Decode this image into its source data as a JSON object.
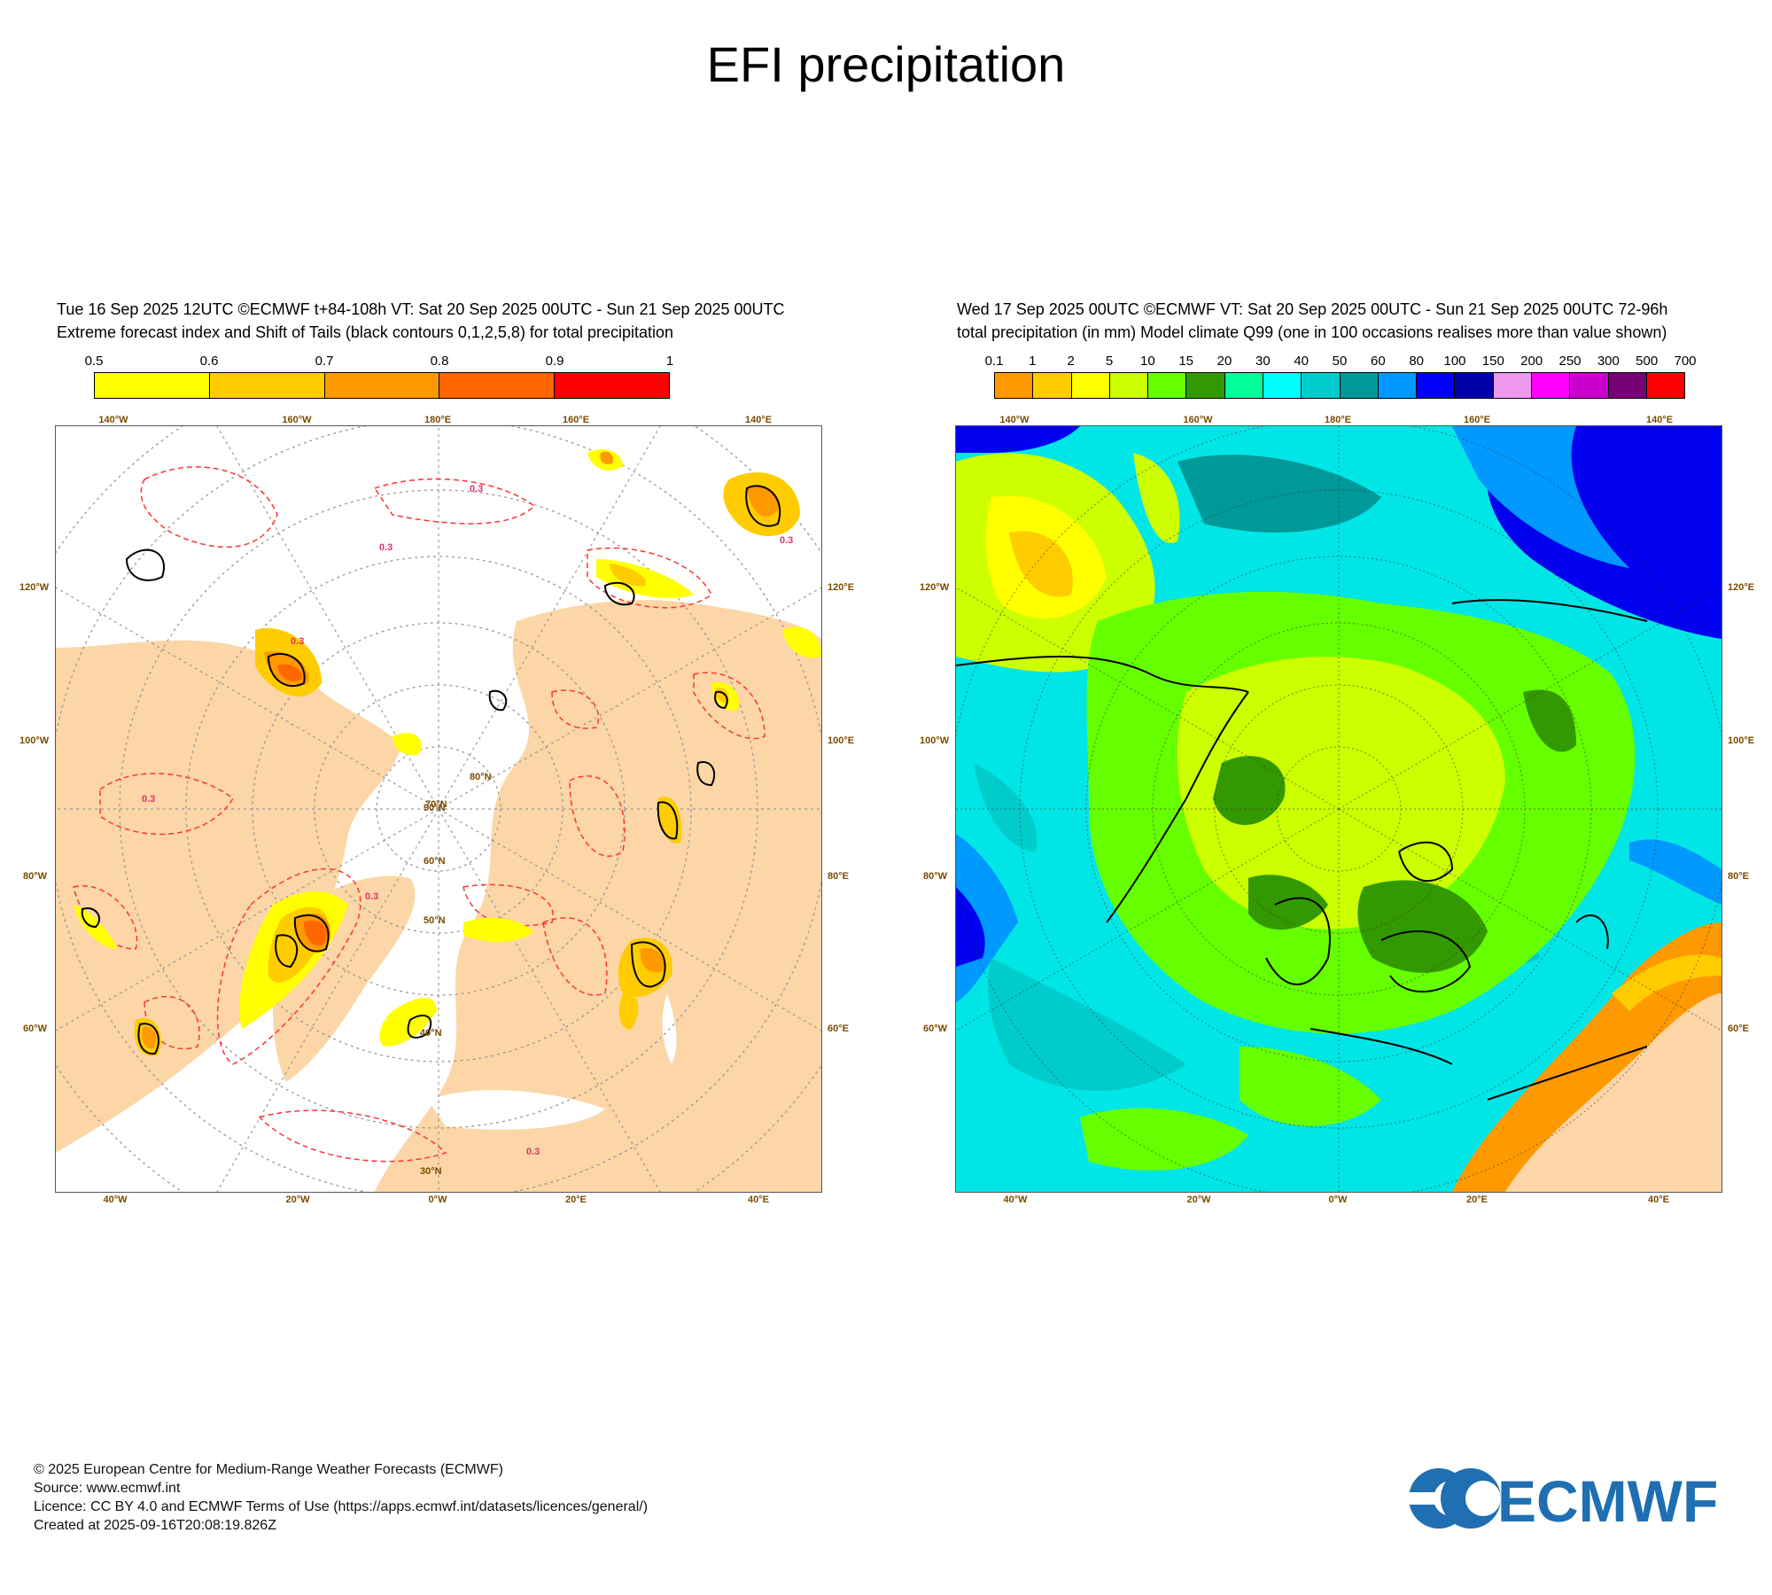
{
  "title": "EFI precipitation",
  "left_panel": {
    "header_line1": "Tue 16 Sep 2025 12UTC ©ECMWF t+84-108h  VT: Sat 20 Sep 2025 00UTC - Sun 21 Sep 2025 00UTC",
    "header_line2": "Extreme forecast index and Shift of Tails (black contours 0,1,2,5,8) for total precipitation",
    "colorbar": {
      "ticks": [
        "0.5",
        "0.6",
        "0.7",
        "0.8",
        "0.9",
        "1"
      ],
      "colors": [
        "#ffff00",
        "#ffcc00",
        "#ff9900",
        "#ff6600",
        "#ff0000"
      ]
    },
    "contour_label": "0.3",
    "colors": {
      "land": "#fcd6a6",
      "ocean": "#ffffff",
      "dashed_contour": "#ff3333",
      "sot_contour": "#000000"
    }
  },
  "right_panel": {
    "header_line1": "Wed 17 Sep 2025 00UTC ©ECMWF VT: Sat 20 Sep 2025 00UTC - Sun 21 Sep 2025 00UTC   72-96h",
    "header_line2": "total precipitation (in mm)  Model climate Q99 (one in 100 occasions realises more than value shown)",
    "colorbar": {
      "ticks": [
        "0.1",
        "1",
        "2",
        "5",
        "10",
        "15",
        "20",
        "30",
        "40",
        "50",
        "60",
        "80",
        "100",
        "150",
        "200",
        "250",
        "300",
        "500",
        "700"
      ],
      "colors": [
        "#ff9900",
        "#ffcc00",
        "#ffff00",
        "#ccff00",
        "#66ff00",
        "#339900",
        "#00ff99",
        "#00ffff",
        "#00cccc",
        "#009999",
        "#0099ff",
        "#0000ff",
        "#0000aa",
        "#ee99ee",
        "#ff00ff",
        "#cc00cc",
        "#770077",
        "#ff0000"
      ]
    }
  },
  "map_labels": {
    "top_lon": [
      "140°W",
      "160°W",
      "180°E",
      "160°E",
      "140°E"
    ],
    "bottom_lon": [
      "40°W",
      "20°W",
      "0°W",
      "20°E",
      "40°E"
    ],
    "left_lat": [
      "120°W",
      "100°W",
      "80°W",
      "60°W"
    ],
    "right_lat": [
      "120°E",
      "100°E",
      "80°E",
      "60°E"
    ],
    "inner_lat": [
      "30°N",
      "40°N",
      "50°N",
      "60°N",
      "70°N",
      "80°N",
      "90°N"
    ]
  },
  "footer": {
    "line1": "© 2025 European Centre for Medium-Range Weather Forecasts (ECMWF)",
    "line2": "Source: www.ecmwf.int",
    "line3": "Licence: CC BY 4.0 and ECMWF Terms of Use (https://apps.ecmwf.int/datasets/licences/general/)",
    "line4": "Created at 2025-09-16T20:08:19.826Z"
  },
  "logo": {
    "text": "ECMWF",
    "color": "#1f6fb2"
  }
}
